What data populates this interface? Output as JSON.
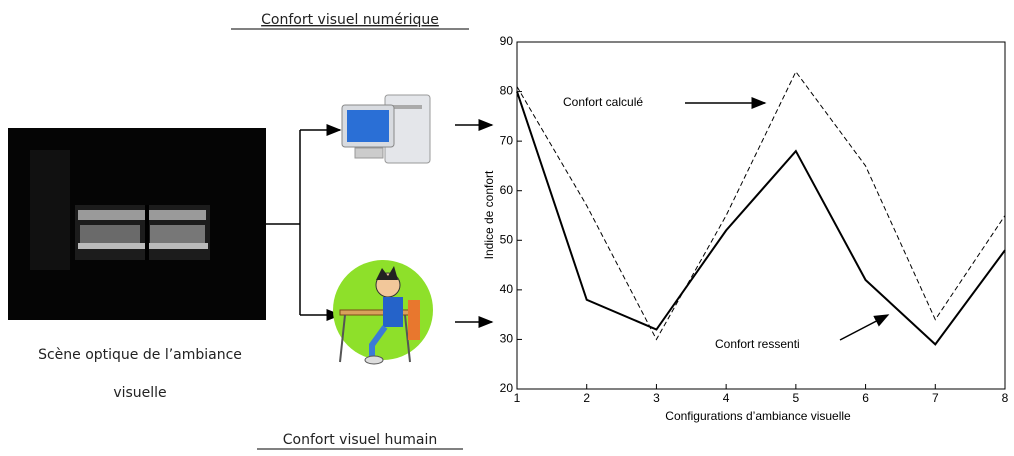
{
  "labels": {
    "top": "Confort visuel numérique",
    "bottom": "Confort visuel humain",
    "scene_line1": "Scène optique de l’ambiance",
    "scene_line2": "visuelle"
  },
  "chart_data": {
    "type": "line",
    "x": [
      1,
      2,
      3,
      4,
      5,
      6,
      7,
      8
    ],
    "series": [
      {
        "name": "Confort calculé",
        "color": "#000000",
        "style": "dashed",
        "values": [
          81,
          57,
          30,
          55,
          84,
          65,
          34,
          55
        ]
      },
      {
        "name": "Confort ressenti",
        "color": "#000000",
        "style": "solid",
        "values": [
          80,
          38,
          32,
          52,
          68,
          42,
          29,
          48
        ]
      }
    ],
    "xlabel": "Configurations d’ambiance visuelle",
    "ylabel": "Indice de confort",
    "xlim": [
      1,
      8
    ],
    "xticks": [
      1,
      2,
      3,
      4,
      5,
      6,
      7,
      8
    ],
    "ylim": [
      20,
      90
    ],
    "yticks": [
      20,
      30,
      40,
      50,
      60,
      70,
      80,
      90
    ]
  }
}
